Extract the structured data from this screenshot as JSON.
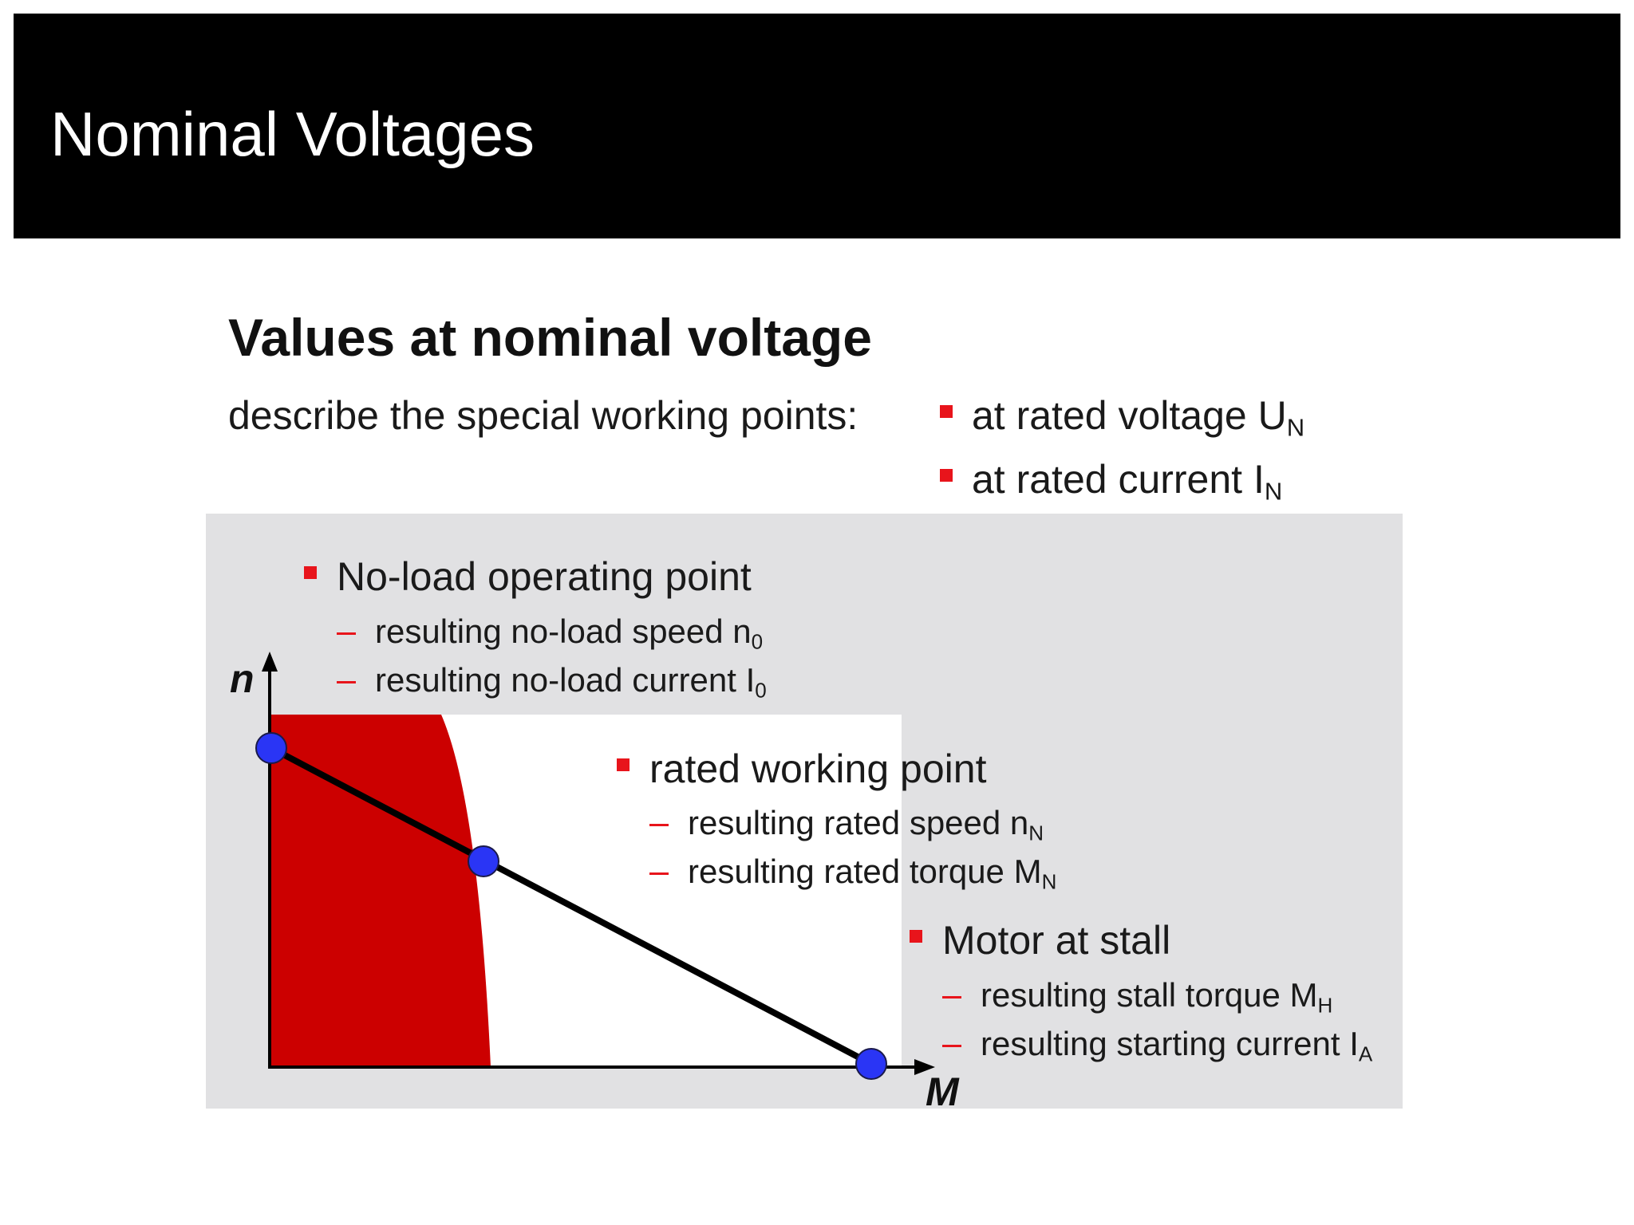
{
  "header": {
    "title": "Nominal Voltages"
  },
  "slide": {
    "heading": "Values at nominal voltage",
    "intro": "describe the special working points:",
    "conditions": [
      {
        "text": "at rated voltage U",
        "sub": "N"
      },
      {
        "text": "at rated current I",
        "sub": "N"
      }
    ]
  },
  "diagram": {
    "axis_y": "n",
    "axis_x": "M",
    "points": [
      {
        "title": "No-load operating point",
        "items": [
          {
            "text": "resulting no-load speed n",
            "sub": "0"
          },
          {
            "text": "resulting no-load current I",
            "sub": "0"
          }
        ]
      },
      {
        "title": "rated working point",
        "items": [
          {
            "text": "resulting rated speed n",
            "sub": "N"
          },
          {
            "text": "resulting rated torque M",
            "sub": "N"
          }
        ]
      },
      {
        "title": "Motor at stall",
        "items": [
          {
            "text": "resulting stall torque M",
            "sub": "H"
          },
          {
            "text": "resulting starting current I",
            "sub": "A"
          }
        ]
      }
    ],
    "colors": {
      "continuous_region": "#cc0000",
      "working_point": "#2a35f5",
      "bullet": "#e8141b",
      "panel": "#e1e1e3"
    }
  }
}
